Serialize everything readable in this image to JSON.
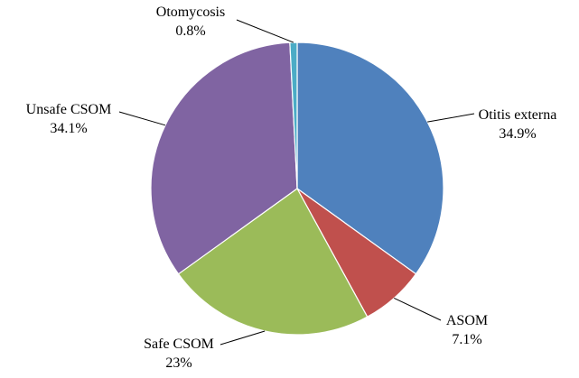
{
  "chart_data": {
    "type": "pie",
    "title": "",
    "slices": [
      {
        "name": "Otitis externa",
        "value": 34.9,
        "label": "34.9%",
        "color": "#4f81bd"
      },
      {
        "name": "ASOM",
        "value": 7.1,
        "label": "7.1%",
        "color": "#c0504d"
      },
      {
        "name": "Safe CSOM",
        "value": 23,
        "label": "23%",
        "color": "#9bbb59"
      },
      {
        "name": "Unsafe CSOM",
        "value": 34.1,
        "label": "34.1%",
        "color": "#8064a2"
      },
      {
        "name": "Otomycosis",
        "value": 0.8,
        "label": "0.8%",
        "color": "#4bacc6"
      }
    ],
    "start_angle": "12 o'clock",
    "direction": "clockwise",
    "legend": "none",
    "data_labels": "outside with leader lines"
  }
}
